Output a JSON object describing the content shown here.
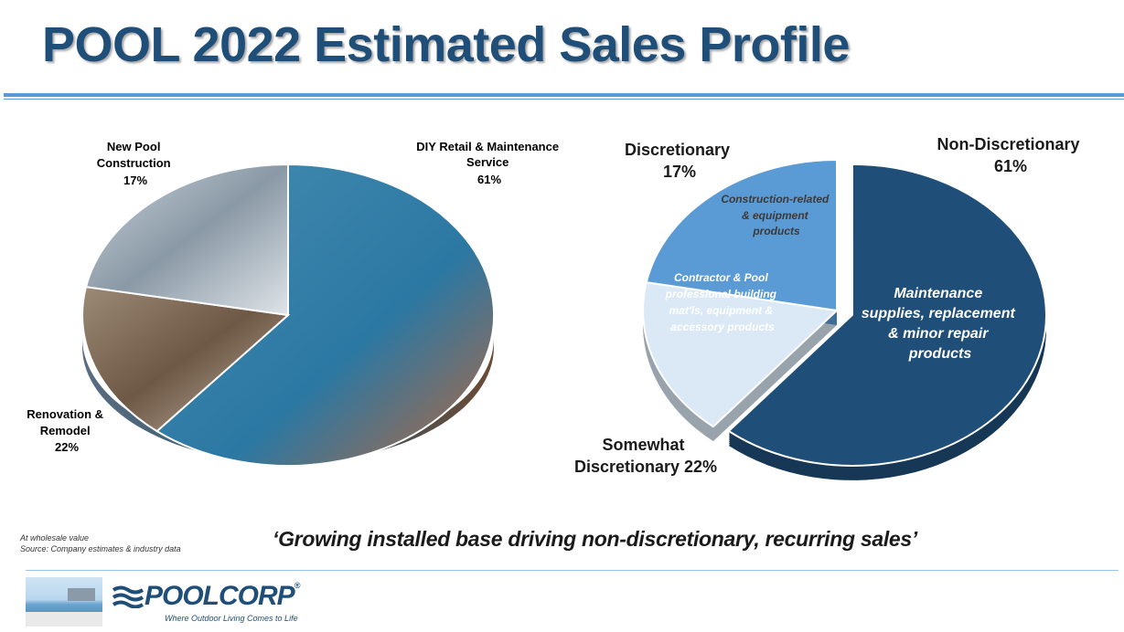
{
  "title": "POOL 2022 Estimated Sales Profile",
  "chart_data": [
    {
      "type": "pie",
      "title": "",
      "slices": [
        {
          "label_lines": [
            "DIY Retail & Maintenance",
            "Service"
          ],
          "value": 61,
          "value_label": "61%",
          "image": "pool-maintenance-photo"
        },
        {
          "label_lines": [
            "New Pool",
            "Construction"
          ],
          "value": 17,
          "value_label": "17%",
          "image": "pool-construction-photo"
        },
        {
          "label_lines": [
            "Renovation &",
            "Remodel"
          ],
          "value": 22,
          "value_label": "22%",
          "image": "tile-renovation-photo"
        }
      ]
    },
    {
      "type": "pie",
      "title": "",
      "slices": [
        {
          "label_lines": [
            "Non-Discretionary",
            "61%"
          ],
          "value": 61,
          "color": "#1f4e79",
          "inner_lines": [
            "Maintenance",
            "supplies, replacement",
            "& minor repair",
            "products"
          ]
        },
        {
          "label_lines": [
            "Discretionary",
            "17%"
          ],
          "value": 17,
          "color": "#dbe9f6",
          "inner_lines": [
            "Construction-related",
            "& equipment",
            "products"
          ]
        },
        {
          "label_lines": [
            "Somewhat",
            "Discretionary 22%"
          ],
          "value": 22,
          "color": "#5b9bd5",
          "inner_lines": [
            "Contractor & Pool",
            "professional building",
            "mat'ls, equipment &",
            "accessory products"
          ]
        }
      ]
    }
  ],
  "footnotes": [
    "At wholesale value",
    "Source: Company estimates & industry data"
  ],
  "quote": "‘Growing installed base driving non-discretionary, recurring sales’",
  "logo": {
    "name": "POOLCORP",
    "reg": "®",
    "tagline": "Where Outdoor Living Comes to Life"
  }
}
